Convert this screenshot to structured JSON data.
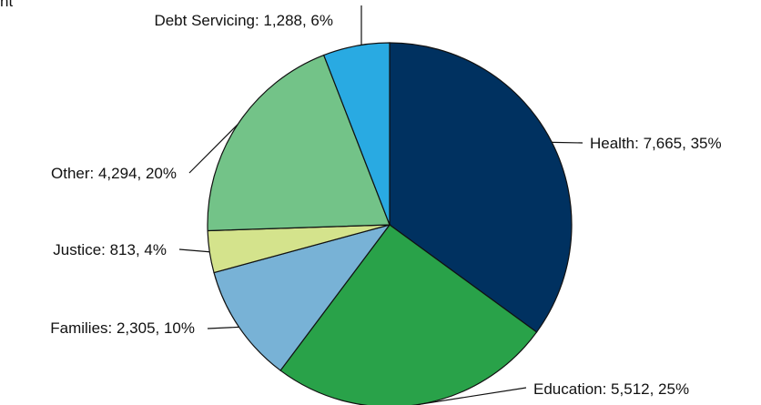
{
  "top_fragment_text": "nt",
  "chart_data": {
    "type": "pie",
    "title": "",
    "start": "12 o'clock",
    "direction": "clockwise",
    "slices": [
      {
        "name": "Health",
        "value": 7665,
        "percent": "35%",
        "label": "Health: 7,665, 35%",
        "color": "#003160"
      },
      {
        "name": "Education",
        "value": 5512,
        "percent": "25%",
        "label": "Education: 5,512, 25%",
        "color": "#29a249"
      },
      {
        "name": "Families",
        "value": 2305,
        "percent": "10%",
        "label": "Families: 2,305, 10%",
        "color": "#78b2d6"
      },
      {
        "name": "Justice",
        "value": 813,
        "percent": "4%",
        "label": "Justice: 813, 4%",
        "color": "#d4e38c"
      },
      {
        "name": "Other",
        "value": 4294,
        "percent": "20%",
        "label": "Other: 4,294, 20%",
        "color": "#73c388"
      },
      {
        "name": "Debt Servicing",
        "value": 1288,
        "percent": "6%",
        "label": "Debt Servicing: 1,288, 6%",
        "color": "#29aae2"
      }
    ]
  }
}
